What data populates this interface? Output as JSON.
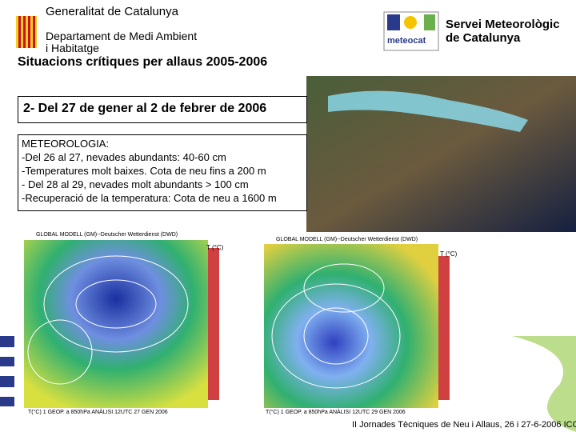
{
  "header": {
    "organization": "Generalitat de Catalunya",
    "department": [
      "Departament de Medi Ambient",
      "i Habitatge"
    ],
    "logo_text": "meteocat",
    "service": [
      "Servei Meteorològic",
      "de Catalunya"
    ]
  },
  "title": "Situacions crítiques per allaus 2005-2006",
  "section": "2- Del 27 de gener al 2 de febrer de 2006",
  "meteorology": {
    "heading": "METEOROLOGIA:",
    "lines": [
      "-Del 26 al 27, nevades abundants: 40-60 cm",
      "-Temperatures molt baixes. Cota de neu fins a 200 m",
      "- Del 28 al 29, nevades molt abundants > 100 cm",
      "-Recuperació de la temperatura: Cota de neu a 1600 m"
    ]
  },
  "maps": [
    {
      "title": "GLOBAL MODELL (GM)--Deutscher Wetterdienst (DWD)",
      "legend": "T (°C)",
      "caption": "T(°C) 1 GEOP. a 850hPa    ANÀLISI 12UTC 27 GEN 2006"
    },
    {
      "title": "GLOBAL MODELL (GM)--Deutscher Wetterdienst (DWD)",
      "legend": "T (°C)",
      "caption": "T(°C) 1 GEOP. a 850hPa    ANÀLISI 12UTC 29 GEN 2006"
    }
  ],
  "footer": "II Jornades Tècniques de Neu i Allaus, 26 i 27-6-2006 ICC"
}
